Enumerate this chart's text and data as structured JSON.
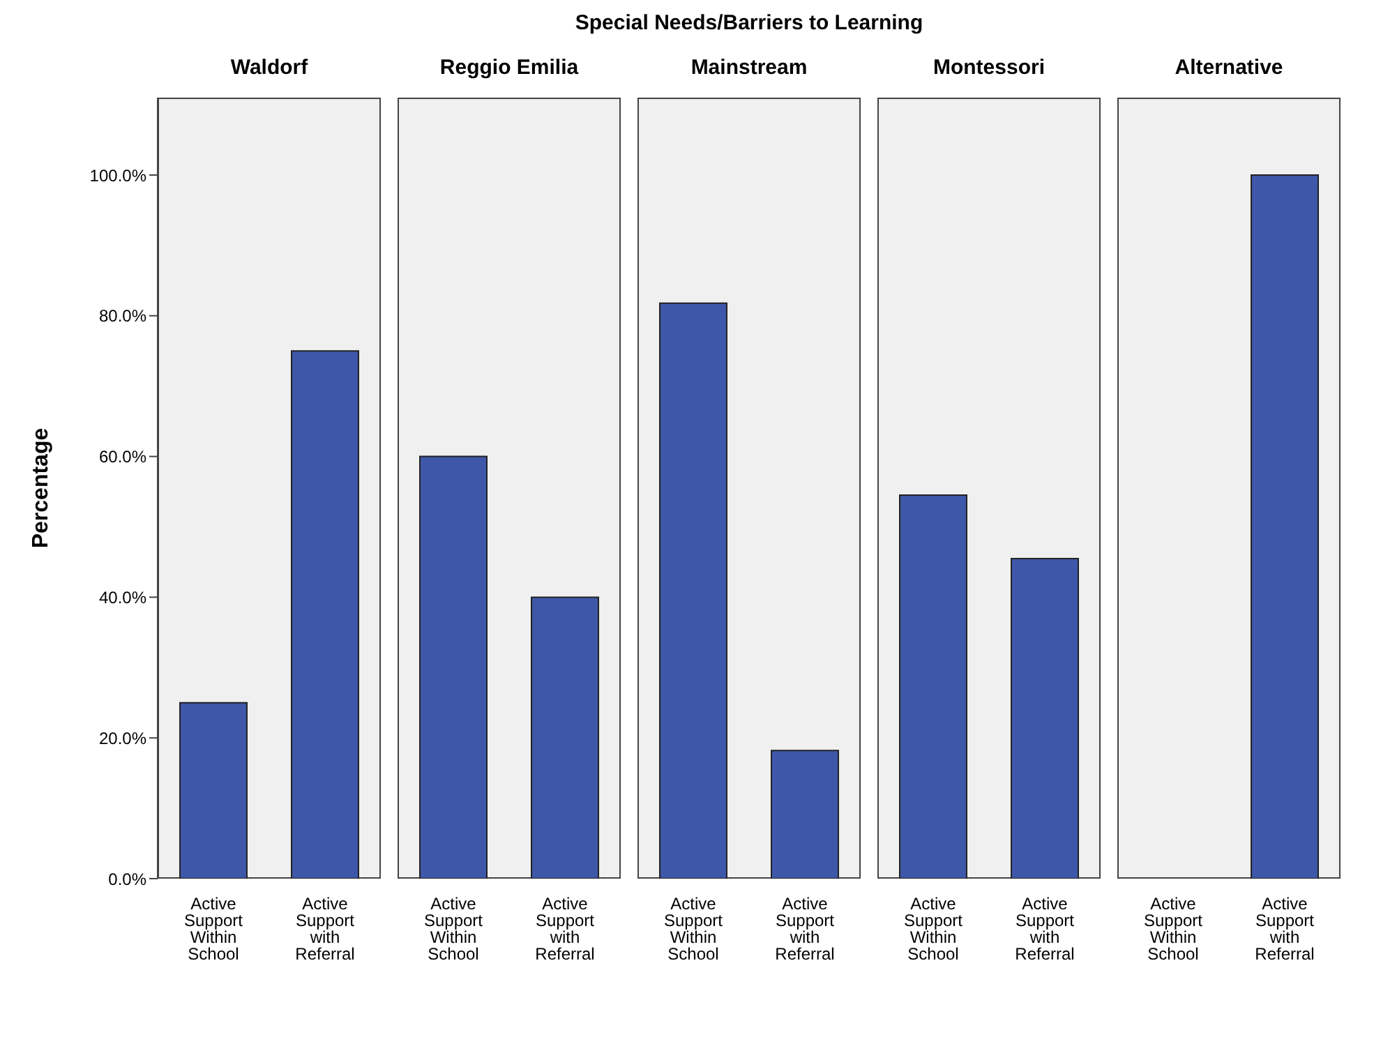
{
  "chart_data": [
    {
      "type": "bar",
      "subtitle": "Waldorf",
      "ylabel": "Percentage",
      "categories": [
        "Active Support Within School",
        "Active Support with Referral"
      ],
      "series": [
        {
          "color": "#3e57a9",
          "values": [
            25,
            75
          ]
        }
      ],
      "ylim": [
        0,
        111
      ],
      "yticks": [
        {
          "value": 0,
          "label": "0.0%"
        },
        {
          "value": 20,
          "label": "20.0%"
        },
        {
          "value": 40,
          "label": "40.0%"
        },
        {
          "value": 60,
          "label": "60.0%"
        },
        {
          "value": 80,
          "label": "80.0%"
        },
        {
          "value": 100,
          "label": "100.0%"
        }
      ]
    },
    {
      "type": "bar",
      "subtitle": "Reggio Emilia",
      "categories": [
        "Active Support Within School",
        "Active Support with Referral"
      ],
      "series": [
        {
          "color": "#3e57a9",
          "values": [
            60,
            40
          ]
        }
      ],
      "ylim": [
        0,
        111
      ],
      "tick_labels": "x"
    },
    {
      "type": "bar",
      "title": "Special Needs/Barriers to Learning",
      "subtitle": "Mainstream",
      "categories": [
        "Active Support Within School",
        "Active Support with Referral"
      ],
      "series": [
        {
          "color": "#3e57a9",
          "values": [
            81.8,
            18.2
          ]
        }
      ],
      "ylim": [
        0,
        111
      ],
      "tick_labels": "x"
    },
    {
      "type": "bar",
      "subtitle": "Montessori",
      "categories": [
        "Active Support Within School",
        "Active Support with Referral"
      ],
      "series": [
        {
          "color": "#3e57a9",
          "values": [
            54.5,
            45.5
          ]
        }
      ],
      "ylim": [
        0,
        111
      ],
      "tick_labels": "x"
    },
    {
      "type": "bar",
      "subtitle": "Alternative",
      "categories": [
        "Active Support Within School",
        "Active Support with Referral"
      ],
      "series": [
        {
          "color": "#3e57a9",
          "values": [
            0,
            100
          ]
        }
      ],
      "ylim": [
        0,
        111
      ],
      "tick_labels": "x"
    }
  ]
}
